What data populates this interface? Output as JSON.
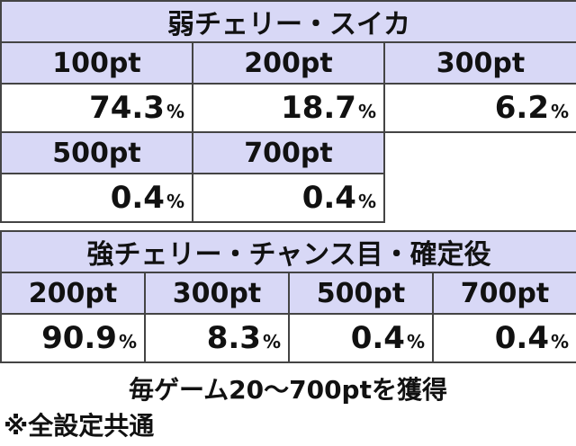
{
  "section1": {
    "title": "弱チェリー・スイカ",
    "rows": [
      [
        {
          "pt": "100pt",
          "value": "74.3",
          "unit": "%"
        },
        {
          "pt": "200pt",
          "value": "18.7",
          "unit": "%"
        },
        {
          "pt": "300pt",
          "value": "6.2",
          "unit": "%"
        }
      ],
      [
        {
          "pt": "500pt",
          "value": "0.4",
          "unit": "%"
        },
        {
          "pt": "700pt",
          "value": "0.4",
          "unit": "%"
        }
      ]
    ]
  },
  "section2": {
    "title": "強チェリー・チャンス目・確定役",
    "cells": [
      {
        "pt": "200pt",
        "value": "90.9",
        "unit": "%"
      },
      {
        "pt": "300pt",
        "value": "8.3",
        "unit": "%"
      },
      {
        "pt": "500pt",
        "value": "0.4",
        "unit": "%"
      },
      {
        "pt": "700pt",
        "value": "0.4",
        "unit": "%"
      }
    ]
  },
  "footer": {
    "line1": "毎ゲーム20～700ptを獲得",
    "line2": "※全設定共通"
  }
}
